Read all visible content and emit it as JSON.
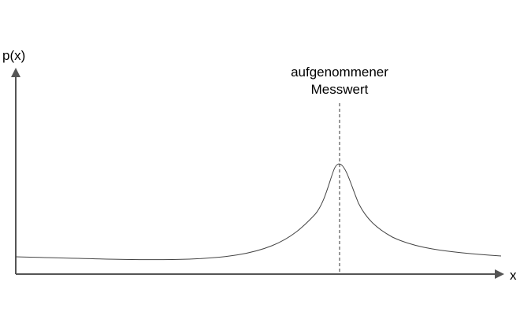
{
  "y_axis_label": "p(x)",
  "x_axis_label": "x",
  "annotation": {
    "line1": "aufgenommener",
    "line2": "Messwert"
  },
  "colors": {
    "axis": "#555555",
    "curve": "#444444",
    "marker": "#333333"
  },
  "axes": {
    "x_arrow": true,
    "y_arrow": true,
    "grid": false
  }
}
